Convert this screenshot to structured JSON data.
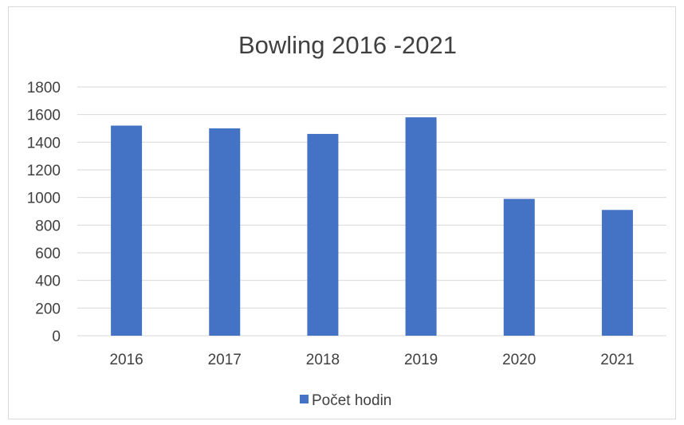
{
  "chart_data": {
    "type": "bar",
    "title": "Bowling 2016 -2021",
    "xlabel": "",
    "ylabel": "",
    "categories": [
      "2016",
      "2017",
      "2018",
      "2019",
      "2020",
      "2021"
    ],
    "series": [
      {
        "name": "Počet hodin",
        "values": [
          1520,
          1500,
          1460,
          1580,
          990,
          910
        ],
        "color": "#4472C4"
      }
    ],
    "ylim": [
      0,
      1800
    ],
    "yticks": [
      "0",
      "200",
      "400",
      "600",
      "800",
      "1000",
      "1200",
      "1400",
      "1600",
      "1800"
    ],
    "grid": true,
    "legend": "bottom"
  }
}
